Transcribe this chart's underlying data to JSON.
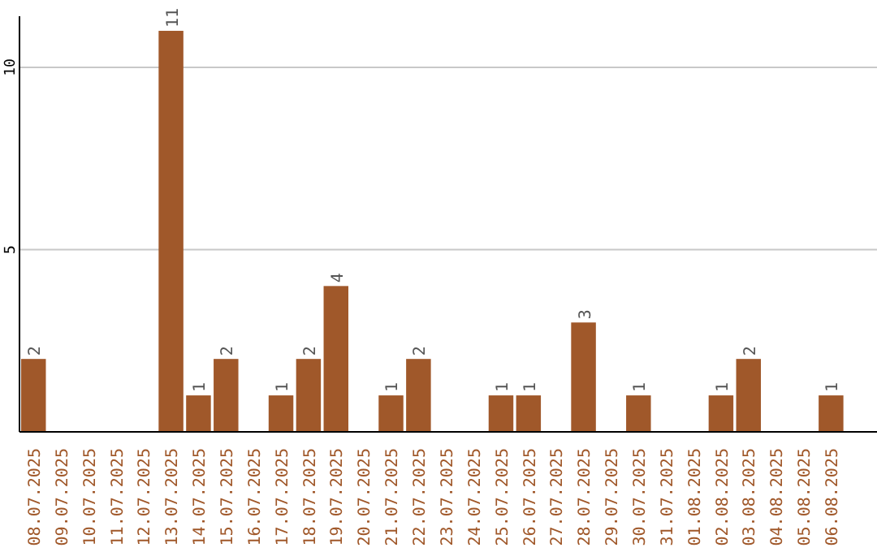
{
  "chart_data": {
    "type": "bar",
    "categories": [
      "08.07.2025",
      "09.07.2025",
      "10.07.2025",
      "11.07.2025",
      "12.07.2025",
      "13.07.2025",
      "14.07.2025",
      "15.07.2025",
      "16.07.2025",
      "17.07.2025",
      "18.07.2025",
      "19.07.2025",
      "20.07.2025",
      "21.07.2025",
      "22.07.2025",
      "23.07.2025",
      "24.07.2025",
      "25.07.2025",
      "26.07.2025",
      "27.07.2025",
      "28.07.2025",
      "29.07.2025",
      "30.07.2025",
      "31.07.2025",
      "01.08.2025",
      "02.08.2025",
      "03.08.2025",
      "04.08.2025",
      "05.08.2025",
      "06.08.2025"
    ],
    "values": [
      2,
      0,
      0,
      0,
      0,
      11,
      1,
      2,
      0,
      1,
      2,
      4,
      0,
      1,
      2,
      0,
      0,
      1,
      1,
      0,
      3,
      0,
      1,
      0,
      0,
      1,
      2,
      0,
      0,
      1
    ],
    "value_labels": [
      "2",
      null,
      null,
      null,
      null,
      "11",
      "1",
      "2",
      null,
      "1",
      "2",
      "4",
      null,
      "1",
      "2",
      null,
      null,
      "1",
      "1",
      null,
      "3",
      null,
      "1",
      null,
      null,
      "1",
      "2",
      null,
      null,
      "1"
    ],
    "color": "#a0582a",
    "ylim": [
      0,
      11.4
    ],
    "yticks": [
      5,
      10
    ],
    "grid": "y"
  }
}
